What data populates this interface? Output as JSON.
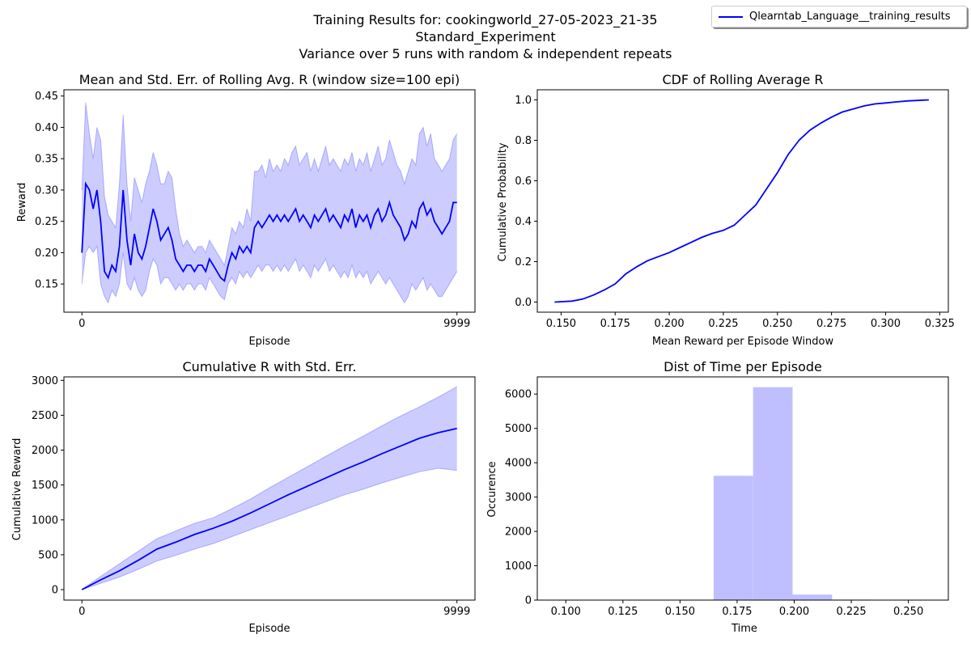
{
  "suptitle": [
    "Training Results for: cookingworld_27-05-2023_21-35",
    "Standard_Experiment",
    "Variance over 5 runs with random & independent repeats"
  ],
  "legend": {
    "label": "Qlearntab_Language__training_results",
    "color": "#0000ff"
  },
  "colors": {
    "line": "#0000ff",
    "band": "#0000ff",
    "band_alpha": 0.2,
    "hist": "#bfbfff"
  },
  "chart_data": [
    {
      "type": "line",
      "title": "Mean and Std. Err. of Rolling Avg. R (window size=100 epi)",
      "xlabel": "Episode",
      "ylabel": "Reward",
      "xlim": [
        -480,
        10480
      ],
      "ylim": [
        0.105,
        0.46
      ],
      "xticks": [
        0,
        9999
      ],
      "xtick_labels": [
        "0",
        "9999"
      ],
      "yticks": [
        0.15,
        0.2,
        0.25,
        0.3,
        0.35,
        0.4,
        0.45
      ],
      "ytick_labels": [
        "0.15",
        "0.20",
        "0.25",
        "0.30",
        "0.35",
        "0.40",
        "0.45"
      ],
      "x": [
        0,
        100,
        200,
        300,
        400,
        500,
        600,
        700,
        800,
        900,
        1000,
        1100,
        1200,
        1300,
        1400,
        1500,
        1600,
        1700,
        1800,
        1900,
        2000,
        2100,
        2200,
        2300,
        2400,
        2500,
        2600,
        2700,
        2800,
        2900,
        3000,
        3100,
        3200,
        3300,
        3400,
        3500,
        3600,
        3700,
        3800,
        3900,
        4000,
        4100,
        4200,
        4300,
        4400,
        4500,
        4600,
        4700,
        4800,
        4900,
        5000,
        5100,
        5200,
        5300,
        5400,
        5500,
        5600,
        5700,
        5800,
        5900,
        6000,
        6100,
        6200,
        6300,
        6400,
        6500,
        6600,
        6700,
        6800,
        6900,
        7000,
        7100,
        7200,
        7300,
        7400,
        7500,
        7600,
        7700,
        7800,
        7900,
        8000,
        8100,
        8200,
        8300,
        8400,
        8500,
        8600,
        8700,
        8800,
        8900,
        9000,
        9100,
        9200,
        9300,
        9400,
        9500,
        9600,
        9700,
        9800,
        9900,
        9999
      ],
      "mean": [
        0.2,
        0.31,
        0.3,
        0.27,
        0.3,
        0.25,
        0.17,
        0.16,
        0.18,
        0.17,
        0.21,
        0.3,
        0.22,
        0.18,
        0.23,
        0.2,
        0.19,
        0.21,
        0.24,
        0.27,
        0.25,
        0.22,
        0.23,
        0.24,
        0.22,
        0.19,
        0.18,
        0.17,
        0.18,
        0.18,
        0.17,
        0.18,
        0.18,
        0.17,
        0.19,
        0.18,
        0.17,
        0.16,
        0.155,
        0.18,
        0.2,
        0.19,
        0.21,
        0.2,
        0.21,
        0.2,
        0.24,
        0.25,
        0.24,
        0.25,
        0.26,
        0.25,
        0.26,
        0.25,
        0.26,
        0.25,
        0.26,
        0.27,
        0.25,
        0.26,
        0.25,
        0.24,
        0.26,
        0.25,
        0.26,
        0.27,
        0.25,
        0.26,
        0.25,
        0.24,
        0.26,
        0.25,
        0.27,
        0.24,
        0.26,
        0.25,
        0.26,
        0.24,
        0.26,
        0.27,
        0.25,
        0.26,
        0.28,
        0.26,
        0.25,
        0.24,
        0.22,
        0.23,
        0.25,
        0.24,
        0.27,
        0.28,
        0.26,
        0.27,
        0.25,
        0.24,
        0.23,
        0.24,
        0.25,
        0.28,
        0.28
      ],
      "upper": [
        0.3,
        0.44,
        0.39,
        0.35,
        0.4,
        0.38,
        0.29,
        0.26,
        0.25,
        0.24,
        0.31,
        0.42,
        0.31,
        0.25,
        0.32,
        0.3,
        0.28,
        0.31,
        0.33,
        0.36,
        0.34,
        0.31,
        0.31,
        0.33,
        0.32,
        0.27,
        0.23,
        0.21,
        0.22,
        0.21,
        0.2,
        0.21,
        0.21,
        0.2,
        0.22,
        0.21,
        0.2,
        0.19,
        0.18,
        0.21,
        0.24,
        0.23,
        0.25,
        0.24,
        0.27,
        0.25,
        0.33,
        0.33,
        0.34,
        0.32,
        0.35,
        0.33,
        0.34,
        0.33,
        0.35,
        0.34,
        0.36,
        0.37,
        0.34,
        0.35,
        0.36,
        0.33,
        0.35,
        0.33,
        0.35,
        0.37,
        0.34,
        0.35,
        0.34,
        0.33,
        0.35,
        0.34,
        0.36,
        0.33,
        0.35,
        0.34,
        0.36,
        0.33,
        0.35,
        0.37,
        0.34,
        0.35,
        0.38,
        0.36,
        0.34,
        0.33,
        0.31,
        0.33,
        0.35,
        0.34,
        0.39,
        0.4,
        0.37,
        0.39,
        0.35,
        0.34,
        0.33,
        0.34,
        0.35,
        0.38,
        0.39
      ],
      "lower": [
        0.15,
        0.2,
        0.21,
        0.2,
        0.21,
        0.15,
        0.13,
        0.12,
        0.14,
        0.13,
        0.15,
        0.2,
        0.15,
        0.14,
        0.16,
        0.14,
        0.13,
        0.14,
        0.17,
        0.19,
        0.18,
        0.15,
        0.16,
        0.16,
        0.15,
        0.14,
        0.15,
        0.14,
        0.15,
        0.15,
        0.14,
        0.15,
        0.15,
        0.14,
        0.16,
        0.15,
        0.14,
        0.13,
        0.125,
        0.15,
        0.16,
        0.15,
        0.17,
        0.16,
        0.17,
        0.16,
        0.17,
        0.18,
        0.17,
        0.18,
        0.18,
        0.17,
        0.18,
        0.17,
        0.18,
        0.17,
        0.18,
        0.19,
        0.17,
        0.18,
        0.17,
        0.16,
        0.18,
        0.17,
        0.18,
        0.19,
        0.17,
        0.18,
        0.17,
        0.16,
        0.17,
        0.16,
        0.18,
        0.16,
        0.17,
        0.16,
        0.17,
        0.15,
        0.16,
        0.17,
        0.16,
        0.15,
        0.16,
        0.15,
        0.14,
        0.13,
        0.12,
        0.13,
        0.15,
        0.14,
        0.15,
        0.16,
        0.14,
        0.15,
        0.14,
        0.13,
        0.13,
        0.14,
        0.15,
        0.16,
        0.17
      ]
    },
    {
      "type": "line",
      "title": "CDF of Rolling Average R",
      "xlabel": "Mean Reward per Episode Window",
      "ylabel": "Cumulative Probability",
      "xlim": [
        0.139,
        0.329
      ],
      "ylim": [
        -0.05,
        1.05
      ],
      "xticks": [
        0.15,
        0.175,
        0.2,
        0.225,
        0.25,
        0.275,
        0.3,
        0.325
      ],
      "xtick_labels": [
        "0.150",
        "0.175",
        "0.200",
        "0.225",
        "0.250",
        "0.275",
        "0.300",
        "0.325"
      ],
      "yticks": [
        0,
        0.2,
        0.4,
        0.6,
        0.8,
        1.0
      ],
      "ytick_labels": [
        "0.0",
        "0.2",
        "0.4",
        "0.6",
        "0.8",
        "1.0"
      ],
      "x": [
        0.147,
        0.155,
        0.16,
        0.165,
        0.17,
        0.175,
        0.18,
        0.185,
        0.19,
        0.195,
        0.2,
        0.205,
        0.21,
        0.215,
        0.22,
        0.225,
        0.23,
        0.235,
        0.24,
        0.245,
        0.25,
        0.255,
        0.26,
        0.265,
        0.27,
        0.275,
        0.28,
        0.285,
        0.29,
        0.295,
        0.3,
        0.305,
        0.31,
        0.32
      ],
      "y": [
        0.0,
        0.005,
        0.015,
        0.035,
        0.06,
        0.09,
        0.14,
        0.175,
        0.205,
        0.225,
        0.245,
        0.27,
        0.295,
        0.32,
        0.34,
        0.355,
        0.38,
        0.43,
        0.48,
        0.56,
        0.64,
        0.73,
        0.8,
        0.85,
        0.885,
        0.915,
        0.94,
        0.955,
        0.97,
        0.98,
        0.985,
        0.99,
        0.995,
        1.0
      ]
    },
    {
      "type": "line",
      "title": "Cumulative R with Std. Err.",
      "xlabel": "Episode",
      "ylabel": "Cumulative Reward",
      "xlim": [
        -480,
        10480
      ],
      "ylim": [
        -150,
        3050
      ],
      "xticks": [
        0,
        9999
      ],
      "xtick_labels": [
        "0",
        "9999"
      ],
      "yticks": [
        0,
        500,
        1000,
        1500,
        2000,
        2500,
        3000
      ],
      "ytick_labels": [
        "0",
        "500",
        "1000",
        "1500",
        "2000",
        "2500",
        "3000"
      ],
      "x": [
        0,
        500,
        1000,
        1500,
        2000,
        2500,
        3000,
        3500,
        4000,
        4500,
        5000,
        5500,
        6000,
        6500,
        7000,
        7500,
        8000,
        8500,
        9000,
        9500,
        9999
      ],
      "mean": [
        0,
        140,
        270,
        420,
        580,
        680,
        790,
        880,
        980,
        1100,
        1230,
        1360,
        1480,
        1600,
        1720,
        1830,
        1950,
        2060,
        2170,
        2250,
        2310
      ],
      "upper": [
        0,
        190,
        370,
        550,
        730,
        840,
        950,
        1030,
        1160,
        1300,
        1460,
        1610,
        1760,
        1910,
        2060,
        2200,
        2350,
        2490,
        2620,
        2760,
        2910
      ],
      "lower": [
        0,
        90,
        180,
        290,
        410,
        490,
        580,
        660,
        760,
        860,
        960,
        1060,
        1160,
        1260,
        1360,
        1440,
        1530,
        1610,
        1690,
        1740,
        1710
      ]
    },
    {
      "type": "bar",
      "title": "Dist of Time per Episode",
      "xlabel": "Time",
      "ylabel": "Occurence",
      "xlim": [
        0.0875,
        0.2675
      ],
      "ylim": [
        0,
        6500
      ],
      "xticks": [
        0.1,
        0.125,
        0.15,
        0.175,
        0.2,
        0.225,
        0.25
      ],
      "xtick_labels": [
        "0.100",
        "0.125",
        "0.150",
        "0.175",
        "0.200",
        "0.225",
        "0.250"
      ],
      "yticks": [
        0,
        1000,
        2000,
        3000,
        4000,
        5000,
        6000
      ],
      "ytick_labels": [
        "0",
        "1000",
        "2000",
        "3000",
        "4000",
        "5000",
        "6000"
      ],
      "bin_edges": [
        0.0955,
        0.1128,
        0.1301,
        0.1474,
        0.1647,
        0.182,
        0.1993,
        0.2166,
        0.2339,
        0.2512,
        0.2685
      ],
      "values": [
        1,
        0,
        0,
        0,
        3620,
        6200,
        160,
        15,
        2,
        1
      ]
    }
  ]
}
